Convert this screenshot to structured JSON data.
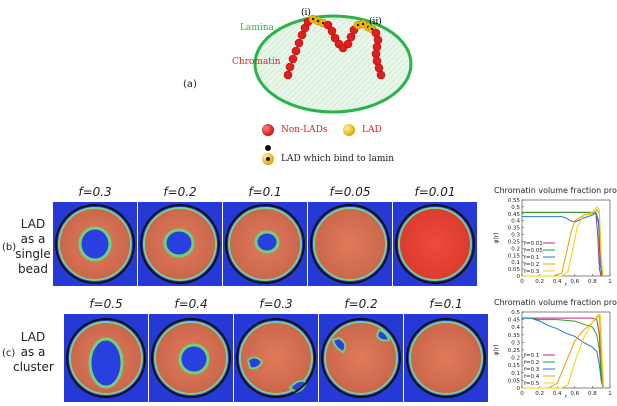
{
  "schematic": {
    "panel_label": "(a)",
    "lamina_label": "Lamina",
    "chromatin_label": "Chromatin",
    "site_i_label": "(i)",
    "site_ii_label": "(ii)",
    "legend": {
      "non_lads": "Non-LADs",
      "lad": "LAD",
      "lad_bind": "LAD which bind to lamin"
    },
    "colors": {
      "lamina": "#29b34a",
      "non_lad": "#e11d1d",
      "lad": "#f2b705"
    }
  },
  "rows": [
    {
      "panel_label": "(b)",
      "title_lines": [
        "LAD",
        "as a",
        "single",
        "bead"
      ],
      "f_labels": [
        "f=0.3",
        "f=0.2",
        "f=0.1",
        "f=0.05",
        "f=0.01"
      ],
      "plot_title": "Chromatin volume fraction profile",
      "chart_data": {
        "type": "line",
        "title": "Chromatin volume fraction profile",
        "xlabel": "r",
        "ylabel": "φ(r)",
        "xlim": [
          0,
          1
        ],
        "ylim": [
          0,
          0.55
        ],
        "xticks": [
          "0",
          "0.2",
          "0.4",
          "0.6",
          "0.8",
          "1"
        ],
        "yticks": [
          "0",
          "0.05",
          "0.1",
          "0.15",
          "0.2",
          "0.25",
          "0.3",
          "0.35",
          "0.4",
          "0.45",
          "0.5",
          "0.55"
        ],
        "legend_position": "left",
        "series": [
          {
            "name": "f=0.01",
            "color": "#c0208a",
            "x": [
              0,
              0.1,
              0.3,
              0.5,
              0.6,
              0.7,
              0.75,
              0.8,
              0.84,
              0.86,
              0.88,
              0.9
            ],
            "y": [
              0.46,
              0.46,
              0.46,
              0.46,
              0.46,
              0.46,
              0.46,
              0.46,
              0.45,
              0.3,
              0.05,
              0
            ]
          },
          {
            "name": "f=0.05",
            "color": "#2aa02a",
            "x": [
              0,
              0.1,
              0.3,
              0.5,
              0.6,
              0.7,
              0.75,
              0.8,
              0.84,
              0.87,
              0.89,
              0.91
            ],
            "y": [
              0.46,
              0.46,
              0.46,
              0.46,
              0.46,
              0.46,
              0.46,
              0.46,
              0.45,
              0.38,
              0.08,
              0
            ]
          },
          {
            "name": "f=0.1",
            "color": "#1f77d4",
            "x": [
              0,
              0.1,
              0.3,
              0.4,
              0.45,
              0.5,
              0.55,
              0.6,
              0.7,
              0.8,
              0.84,
              0.87,
              0.89,
              0.91
            ],
            "y": [
              0.43,
              0.43,
              0.43,
              0.43,
              0.43,
              0.42,
              0.4,
              0.39,
              0.42,
              0.44,
              0.46,
              0.4,
              0.08,
              0
            ]
          },
          {
            "name": "f=0.2",
            "color": "#e8a000",
            "x": [
              0,
              0.35,
              0.45,
              0.5,
              0.55,
              0.6,
              0.7,
              0.8,
              0.85,
              0.88,
              0.9,
              0.92
            ],
            "y": [
              0,
              0,
              0.02,
              0.15,
              0.3,
              0.4,
              0.44,
              0.45,
              0.48,
              0.45,
              0.1,
              0
            ]
          },
          {
            "name": "f=0.3",
            "color": "#ecd400",
            "x": [
              0,
              0.45,
              0.52,
              0.58,
              0.63,
              0.7,
              0.8,
              0.85,
              0.88,
              0.9,
              0.92
            ],
            "y": [
              0,
              0,
              0.03,
              0.2,
              0.36,
              0.44,
              0.46,
              0.5,
              0.48,
              0.15,
              0
            ]
          }
        ]
      }
    },
    {
      "panel_label": "(c)",
      "title_lines": [
        "LAD",
        "as a",
        "cluster"
      ],
      "f_labels": [
        "f=0.5",
        "f=0.4",
        "f=0.3",
        "f=0.2",
        "f=0.1"
      ],
      "plot_title": "Chromatin volume fraction profile",
      "chart_data": {
        "type": "line",
        "title": "Chromatin volume fraction profile",
        "xlabel": "r",
        "ylabel": "φ(r)",
        "xlim": [
          0,
          1
        ],
        "ylim": [
          0,
          0.5
        ],
        "xticks": [
          "0",
          "0.2",
          "0.4",
          "0.6",
          "0.8",
          "1"
        ],
        "yticks": [
          "0",
          "0.05",
          "0.1",
          "0.15",
          "0.2",
          "0.25",
          "0.3",
          "0.35",
          "0.4",
          "0.45",
          "0.5"
        ],
        "legend_position": "left",
        "series": [
          {
            "name": "f=0.1",
            "color": "#c0208a",
            "x": [
              0,
              0.1,
              0.3,
              0.5,
              0.6,
              0.7,
              0.8,
              0.85,
              0.88,
              0.9,
              0.92
            ],
            "y": [
              0.46,
              0.46,
              0.46,
              0.46,
              0.46,
              0.46,
              0.46,
              0.45,
              0.35,
              0.1,
              0
            ]
          },
          {
            "name": "f=0.2",
            "color": "#2aa02a",
            "x": [
              0,
              0.1,
              0.2,
              0.4,
              0.6,
              0.7,
              0.8,
              0.85,
              0.88,
              0.9,
              0.92
            ],
            "y": [
              0.46,
              0.46,
              0.45,
              0.45,
              0.44,
              0.42,
              0.4,
              0.35,
              0.25,
              0.08,
              0
            ]
          },
          {
            "name": "f=0.3",
            "color": "#1f77d4",
            "x": [
              0,
              0.1,
              0.2,
              0.3,
              0.4,
              0.5,
              0.6,
              0.7,
              0.8,
              0.85,
              0.88,
              0.9,
              0.92
            ],
            "y": [
              0.46,
              0.46,
              0.44,
              0.41,
              0.39,
              0.36,
              0.34,
              0.3,
              0.27,
              0.24,
              0.15,
              0.05,
              0
            ]
          },
          {
            "name": "f=0.4",
            "color": "#e8a000",
            "x": [
              0,
              0.3,
              0.4,
              0.5,
              0.6,
              0.7,
              0.8,
              0.85,
              0.88,
              0.9,
              0.92
            ],
            "y": [
              0,
              0,
              0.03,
              0.17,
              0.31,
              0.38,
              0.43,
              0.46,
              0.48,
              0.2,
              0
            ]
          },
          {
            "name": "f=0.5",
            "color": "#ecd400",
            "x": [
              0,
              0.45,
              0.52,
              0.6,
              0.7,
              0.8,
              0.86,
              0.89,
              0.91,
              0.93
            ],
            "y": [
              0,
              0,
              0.02,
              0.17,
              0.33,
              0.43,
              0.48,
              0.48,
              0.2,
              0
            ]
          }
        ]
      }
    }
  ]
}
